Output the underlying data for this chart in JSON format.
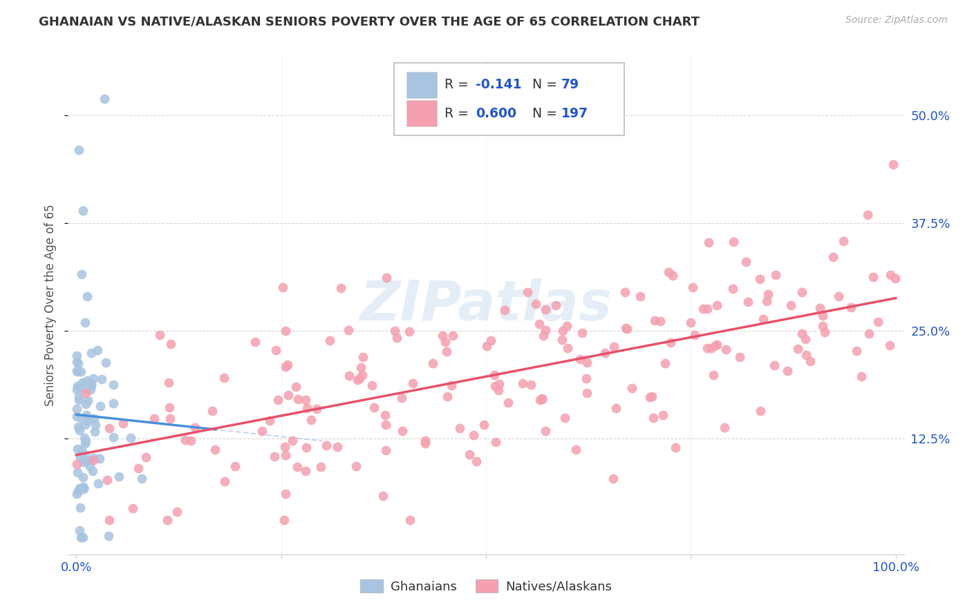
{
  "title": "GHANAIAN VS NATIVE/ALASKAN SENIORS POVERTY OVER THE AGE OF 65 CORRELATION CHART",
  "source": "Source: ZipAtlas.com",
  "ylabel_label": "Seniors Poverty Over the Age of 65",
  "ghanaian_R": -0.141,
  "ghanaian_N": 79,
  "native_R": 0.6,
  "native_N": 197,
  "ghanaian_color": "#a8c4e0",
  "native_color": "#f4a0b0",
  "ghanaian_line_color": "#4a90d9",
  "native_line_color": "#e8506a",
  "ghanaian_line_ext_color": "#b0c8e8",
  "background_color": "#ffffff",
  "legend_label_ghanaian": "Ghanaians",
  "legend_label_native": "Natives/Alaskans",
  "R_color": "#2255cc",
  "N_color": "#2255cc",
  "grid_color": "#d8d8d8",
  "tick_color": "#2255cc",
  "title_color": "#333333",
  "source_color": "#aaaaaa",
  "ylabel_color": "#555555",
  "watermark_color": "#d0e0f0",
  "xlim": [
    0.0,
    1.0
  ],
  "ylim_pct": [
    0.0,
    0.55
  ],
  "yticks_pct": [
    0.125,
    0.25,
    0.375,
    0.5
  ],
  "ytick_labels": [
    "12.5%",
    "25.0%",
    "37.5%",
    "50.0%"
  ],
  "xtick_labels": [
    "0.0%",
    "100.0%"
  ],
  "marker_size": 100,
  "marker_alpha": 0.85
}
